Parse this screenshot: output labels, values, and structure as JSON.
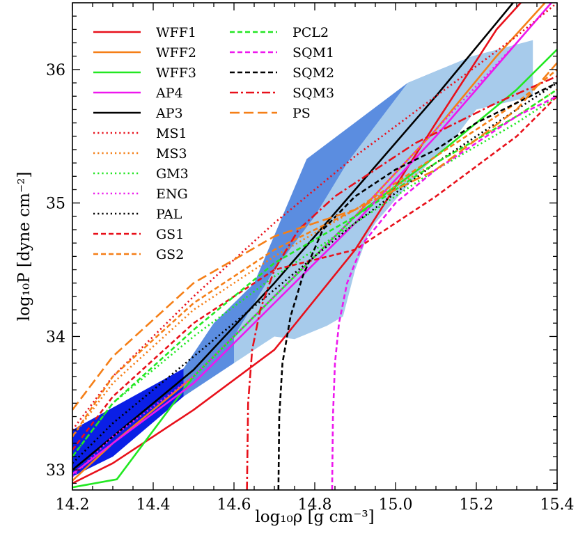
{
  "chart_data": {
    "type": "line",
    "xlabel": "log₁₀ρ [g cm⁻³]",
    "ylabel": "log₁₀P [dyne cm⁻²]",
    "xlim": [
      14.2,
      15.4
    ],
    "ylim": [
      32.85,
      36.5
    ],
    "xticks": [
      14.2,
      14.4,
      14.6,
      14.8,
      15.0,
      15.2,
      15.4
    ],
    "xtick_labels": [
      "14.2",
      "14.4",
      "14.6",
      "14.8",
      "15.0",
      "15.2",
      "15.4"
    ],
    "yticks": [
      33,
      34,
      35,
      36
    ],
    "ytick_labels": [
      "33",
      "34",
      "35",
      "36"
    ],
    "grid": false,
    "legend_placement": "top-left",
    "regions": [
      {
        "fill": "#0a1fe6",
        "points": [
          [
            14.2,
            32.95
          ],
          [
            14.2,
            33.3
          ],
          [
            14.475,
            33.76
          ],
          [
            14.475,
            33.55
          ],
          [
            14.3,
            33.1
          ]
        ]
      },
      {
        "fill": "#5b8de0",
        "points": [
          [
            14.475,
            33.55
          ],
          [
            14.475,
            33.76
          ],
          [
            14.55,
            34.1
          ],
          [
            14.65,
            34.4
          ],
          [
            14.78,
            35.33
          ],
          [
            15.03,
            35.9
          ],
          [
            15.19,
            36.1
          ],
          [
            15.19,
            35.75
          ],
          [
            15.0,
            35.3
          ],
          [
            14.88,
            34.95
          ],
          [
            14.8,
            34.55
          ],
          [
            14.7,
            34.15
          ],
          [
            14.6,
            33.8
          ]
        ]
      },
      {
        "fill": "#a7cbeb",
        "points": [
          [
            14.6,
            33.8
          ],
          [
            14.7,
            34.0
          ],
          [
            14.75,
            33.98
          ],
          [
            14.83,
            34.08
          ],
          [
            14.87,
            34.15
          ],
          [
            14.9,
            34.5
          ],
          [
            14.93,
            34.75
          ],
          [
            14.95,
            34.85
          ],
          [
            15.05,
            35.2
          ],
          [
            15.15,
            35.5
          ],
          [
            15.2,
            35.7
          ],
          [
            15.34,
            35.8
          ],
          [
            15.34,
            36.22
          ],
          [
            15.19,
            36.1
          ],
          [
            15.03,
            35.9
          ],
          [
            14.88,
            35.3
          ],
          [
            14.8,
            34.9
          ],
          [
            14.7,
            34.5
          ],
          [
            14.6,
            34.0
          ]
        ]
      }
    ],
    "series": [
      {
        "name": "WFF1",
        "color": "#e8101a",
        "dash": "solid",
        "x": [
          14.2,
          14.3,
          14.5,
          14.7,
          14.9,
          15.1,
          15.25,
          15.4
        ],
        "y": [
          32.9,
          33.05,
          33.45,
          33.9,
          34.65,
          35.6,
          36.3,
          36.8
        ]
      },
      {
        "name": "WFF2",
        "color": "#f57f17",
        "dash": "solid",
        "x": [
          14.2,
          14.3,
          14.5,
          14.7,
          14.9,
          15.1,
          15.25,
          15.4
        ],
        "y": [
          32.92,
          33.2,
          33.7,
          34.3,
          34.9,
          35.55,
          36.1,
          36.6
        ]
      },
      {
        "name": "WFF3",
        "color": "#22e822",
        "dash": "solid",
        "x": [
          14.2,
          14.31,
          14.5,
          14.7,
          14.9,
          15.1,
          15.3,
          15.4
        ],
        "y": [
          32.87,
          32.93,
          33.7,
          34.3,
          34.9,
          35.35,
          35.85,
          36.15
        ]
      },
      {
        "name": "AP4",
        "color": "#ee17ee",
        "dash": "solid",
        "x": [
          14.2,
          14.3,
          14.5,
          14.7,
          14.9,
          15.1,
          15.3,
          15.4
        ],
        "y": [
          32.97,
          33.2,
          33.65,
          34.25,
          34.85,
          35.5,
          36.2,
          36.55
        ]
      },
      {
        "name": "AP3",
        "color": "#000000",
        "dash": "solid",
        "x": [
          14.2,
          14.3,
          14.5,
          14.7,
          14.9,
          15.1,
          15.25,
          15.4
        ],
        "y": [
          33.0,
          33.25,
          33.75,
          34.4,
          35.1,
          35.8,
          36.35,
          36.9
        ]
      },
      {
        "name": "MS1",
        "color": "#e8101a",
        "dash": "dot",
        "x": [
          14.2,
          14.3,
          14.5,
          14.7,
          14.9,
          15.1,
          15.3,
          15.4
        ],
        "y": [
          33.3,
          33.7,
          34.3,
          34.85,
          35.35,
          35.8,
          36.25,
          36.5
        ]
      },
      {
        "name": "MS3",
        "color": "#f57f17",
        "dash": "dot",
        "x": [
          14.2,
          14.3,
          14.5,
          14.7,
          14.9,
          15.1,
          15.3,
          15.4
        ],
        "y": [
          33.25,
          33.65,
          34.2,
          34.6,
          34.95,
          35.3,
          35.65,
          35.85
        ]
      },
      {
        "name": "GM3",
        "color": "#22e822",
        "dash": "dot",
        "x": [
          14.2,
          14.3,
          14.5,
          14.7,
          14.9,
          15.1,
          15.3,
          15.4
        ],
        "y": [
          33.1,
          33.5,
          34.0,
          34.45,
          34.85,
          35.25,
          35.6,
          35.8
        ]
      },
      {
        "name": "ENG",
        "color": "#ee17ee",
        "dash": "dot",
        "x": [
          14.2,
          14.3,
          14.5,
          14.7,
          14.9,
          15.1,
          15.3,
          15.4
        ],
        "y": [
          32.95,
          33.25,
          33.7,
          34.3,
          34.9,
          35.55,
          36.2,
          36.55
        ]
      },
      {
        "name": "PAL",
        "color": "#000000",
        "dash": "dot",
        "x": [
          14.2,
          14.3,
          14.5,
          14.7,
          14.9,
          15.1,
          15.3,
          15.4
        ],
        "y": [
          33.05,
          33.35,
          33.85,
          34.35,
          34.85,
          35.3,
          35.7,
          35.9
        ]
      },
      {
        "name": "GS1",
        "color": "#e8101a",
        "dash": "dash",
        "x": [
          14.2,
          14.3,
          14.5,
          14.7,
          14.9,
          15.1,
          15.3,
          15.4
        ],
        "y": [
          33.15,
          33.55,
          34.1,
          34.5,
          34.65,
          35.05,
          35.5,
          35.8
        ]
      },
      {
        "name": "GS2",
        "color": "#f57f17",
        "dash": "dash",
        "x": [
          14.2,
          14.3,
          14.5,
          14.7,
          14.9,
          15.1,
          15.3,
          15.4
        ],
        "y": [
          33.25,
          33.7,
          34.25,
          34.65,
          34.95,
          35.35,
          35.75,
          36.0
        ]
      },
      {
        "name": "PCL2",
        "color": "#22e822",
        "dash": "dash",
        "x": [
          14.2,
          14.3,
          14.5,
          14.7,
          14.9,
          15.1,
          15.3,
          15.4
        ],
        "y": [
          33.1,
          33.5,
          34.05,
          34.55,
          34.9,
          35.3,
          35.65,
          35.85
        ]
      },
      {
        "name": "SQM1",
        "color": "#ee17ee",
        "dash": "dash",
        "x": [
          14.843,
          14.845,
          14.85,
          14.86,
          14.88,
          14.92,
          15.0,
          15.1,
          15.2,
          15.3,
          15.4
        ],
        "y": [
          32.85,
          33.4,
          33.8,
          34.1,
          34.4,
          34.7,
          35.0,
          35.25,
          35.45,
          35.65,
          35.8
        ]
      },
      {
        "name": "SQM2",
        "color": "#000000",
        "dash": "dash",
        "x": [
          14.71,
          14.712,
          14.72,
          14.74,
          14.77,
          14.82,
          14.9,
          15.0,
          15.1,
          15.2,
          15.3,
          15.4
        ],
        "y": [
          32.85,
          33.4,
          33.8,
          34.15,
          34.45,
          34.8,
          35.05,
          35.25,
          35.4,
          35.6,
          35.75,
          35.9
        ]
      },
      {
        "name": "SQM3",
        "color": "#e8101a",
        "dash": "dashdot",
        "x": [
          14.632,
          14.635,
          14.645,
          14.665,
          14.7,
          14.76,
          14.85,
          14.95,
          15.05,
          15.15,
          15.25,
          15.4
        ],
        "y": [
          32.85,
          33.5,
          33.9,
          34.2,
          34.5,
          34.8,
          35.05,
          35.25,
          35.45,
          35.6,
          35.75,
          35.95
        ]
      },
      {
        "name": "PS",
        "color": "#f57f17",
        "dash": "longdash",
        "x": [
          14.2,
          14.3,
          14.5,
          14.7,
          14.9,
          15.1,
          15.3,
          15.4
        ],
        "y": [
          33.45,
          33.85,
          34.4,
          34.75,
          34.95,
          35.25,
          35.7,
          36.05
        ]
      }
    ]
  }
}
